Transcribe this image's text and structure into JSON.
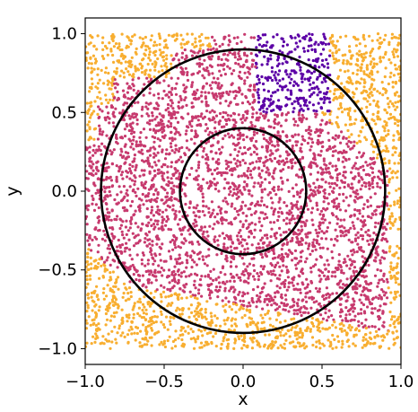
{
  "chart_data": {
    "type": "scatter",
    "xlabel": "x",
    "ylabel": "y",
    "xlim": [
      -1.0,
      1.0
    ],
    "ylim": [
      -1.1,
      1.1
    ],
    "x_ticks": [
      -1.0,
      -0.5,
      0.0,
      0.5,
      1.0
    ],
    "y_ticks": [
      -1.0,
      -0.5,
      0.0,
      0.5,
      1.0
    ],
    "x_tick_labels": [
      "−1.0",
      "−0.5",
      "0.0",
      "0.5",
      "1.0"
    ],
    "y_tick_labels": [
      "−1.0",
      "−0.5",
      "0.0",
      "0.5",
      "1.0"
    ],
    "grid": false,
    "point_sampling": {
      "x_range": [
        -1.0,
        1.0
      ],
      "y_range": [
        -1.0,
        1.0
      ],
      "count": 5200,
      "seed": 12345
    },
    "regions": [
      {
        "id": "outside",
        "color": "#f8ae30",
        "rule": "outside the line from (-1.0, -0.35) to (-0.7, -0.6) and the line from (0.47, 0.50) to (0.92, 0.15)"
      },
      {
        "id": "core",
        "color": "#c73a6e",
        "rule": "between the two separating lines"
      },
      {
        "id": "wedge",
        "color": "#5c00a6",
        "rule": "x from 0.08 to 0.55, y from 0.50 to 1.0"
      }
    ],
    "circles": [
      {
        "cx": 0.0,
        "cy": 0.0,
        "r": 0.9,
        "color": "#000000"
      },
      {
        "cx": 0.0,
        "cy": 0.0,
        "r": 0.4,
        "color": "#000000"
      }
    ]
  }
}
